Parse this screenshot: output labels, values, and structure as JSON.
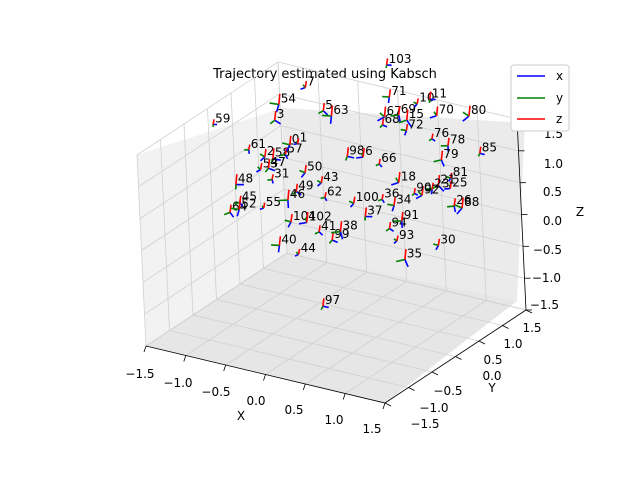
{
  "chart_data": {
    "type": "scatter",
    "title": "Trajectory estimated using Kabsch",
    "xlabel": "X",
    "ylabel": "Y",
    "zlabel": "Z",
    "x_ticks": [
      "−1.5",
      "−1.0",
      "−0.5",
      "0.0",
      "0.5",
      "1.0",
      "1.5"
    ],
    "y_ticks": [
      "−1.5",
      "−1.0",
      "−0.5",
      "0.0",
      "0.5",
      "1.0",
      "1.5"
    ],
    "z_ticks": [
      "−1.5",
      "−1.0",
      "−0.5",
      "0.0",
      "0.5",
      "1.0",
      "1.5"
    ],
    "xlim": [
      -1.5,
      1.5
    ],
    "ylim": [
      -1.5,
      1.5
    ],
    "zlim": [
      -1.5,
      1.5
    ],
    "grid": true,
    "legend_position": "top-right",
    "legend": [
      {
        "name": "x",
        "color": "#0000ff"
      },
      {
        "name": "y",
        "color": "#008000"
      },
      {
        "name": "z",
        "color": "#ff0000"
      }
    ],
    "poses": [
      {
        "label": "59",
        "x": -1.5,
        "y": 0.1,
        "z": 1.2
      },
      {
        "label": "64",
        "x": -1.4,
        "y": 0.2,
        "z": -0.2
      },
      {
        "label": "54",
        "x": -0.9,
        "y": 0.5,
        "z": 1.5
      },
      {
        "label": "7",
        "x": -0.8,
        "y": 0.9,
        "z": 1.6
      },
      {
        "label": "3",
        "x": -0.9,
        "y": 0.4,
        "z": 1.3
      },
      {
        "label": "61",
        "x": -1.0,
        "y": 0.0,
        "z": 1.0
      },
      {
        "label": "2",
        "x": -0.8,
        "y": 0.0,
        "z": 0.95
      },
      {
        "label": "58",
        "x": -0.7,
        "y": 0.0,
        "z": 0.95
      },
      {
        "label": "57",
        "x": -0.6,
        "y": 0.1,
        "z": 1.0
      },
      {
        "label": "0",
        "x": -0.6,
        "y": 0.2,
        "z": 1.1
      },
      {
        "label": "1",
        "x": -0.5,
        "y": 0.2,
        "z": 1.15
      },
      {
        "label": "5",
        "x": -0.4,
        "y": 0.6,
        "z": 1.5
      },
      {
        "label": "63",
        "x": -0.3,
        "y": 0.6,
        "z": 1.45
      },
      {
        "label": "53",
        "x": -0.8,
        "y": -0.1,
        "z": 0.8
      },
      {
        "label": "47",
        "x": -0.7,
        "y": -0.1,
        "z": 0.85
      },
      {
        "label": "31",
        "x": -0.6,
        "y": -0.2,
        "z": 0.75
      },
      {
        "label": "50",
        "x": -0.3,
        "y": 0.0,
        "z": 0.85
      },
      {
        "label": "48",
        "x": -1.0,
        "y": -0.3,
        "z": 0.6
      },
      {
        "label": "45",
        "x": -0.9,
        "y": -0.4,
        "z": 0.4
      },
      {
        "label": "52",
        "x": -0.85,
        "y": -0.5,
        "z": 0.35
      },
      {
        "label": "55",
        "x": -0.6,
        "y": -0.4,
        "z": 0.4
      },
      {
        "label": "49",
        "x": -0.3,
        "y": -0.2,
        "z": 0.65
      },
      {
        "label": "46",
        "x": -0.35,
        "y": -0.3,
        "z": 0.55
      },
      {
        "label": "43",
        "x": -0.1,
        "y": 0.0,
        "z": 0.75
      },
      {
        "label": "98",
        "x": 0.0,
        "y": 0.4,
        "z": 1.0
      },
      {
        "label": "62",
        "x": 0.0,
        "y": -0.1,
        "z": 0.6
      },
      {
        "label": "104",
        "x": -0.2,
        "y": -0.5,
        "z": 0.35
      },
      {
        "label": "102",
        "x": 0.0,
        "y": -0.5,
        "z": 0.4
      },
      {
        "label": "41",
        "x": 0.15,
        "y": -0.5,
        "z": 0.3
      },
      {
        "label": "40",
        "x": -0.3,
        "y": -0.6,
        "z": 0.0
      },
      {
        "label": "44",
        "x": 0.0,
        "y": -0.7,
        "z": 0.0
      },
      {
        "label": "99",
        "x": 0.25,
        "y": -0.4,
        "z": 0.15
      },
      {
        "label": "38",
        "x": 0.3,
        "y": -0.3,
        "z": 0.25
      },
      {
        "label": "100",
        "x": 0.3,
        "y": 0.0,
        "z": 0.55
      },
      {
        "label": "37",
        "x": 0.5,
        "y": -0.1,
        "z": 0.45
      },
      {
        "label": "36",
        "x": 0.6,
        "y": 0.1,
        "z": 0.65
      },
      {
        "label": "34",
        "x": 0.75,
        "y": 0.1,
        "z": 0.6
      },
      {
        "label": "18",
        "x": 0.7,
        "y": 0.3,
        "z": 0.85
      },
      {
        "label": "94",
        "x": 0.8,
        "y": -0.1,
        "z": 0.35
      },
      {
        "label": "91",
        "x": 0.9,
        "y": 0.0,
        "z": 0.45
      },
      {
        "label": "93",
        "x": 0.95,
        "y": -0.2,
        "z": 0.25
      },
      {
        "label": "97",
        "x": 0.4,
        "y": -0.9,
        "z": -0.6
      },
      {
        "label": "35",
        "x": 1.1,
        "y": -0.3,
        "z": 0.05
      },
      {
        "label": "30",
        "x": 1.35,
        "y": 0.0,
        "z": 0.2
      },
      {
        "label": "6",
        "x": 0.2,
        "y": 0.4,
        "z": 1.05
      },
      {
        "label": "66",
        "x": 0.4,
        "y": 0.4,
        "z": 1.0
      },
      {
        "label": "71",
        "x": 0.2,
        "y": 1.0,
        "z": 1.7
      },
      {
        "label": "67",
        "x": 0.25,
        "y": 0.8,
        "z": 1.5
      },
      {
        "label": "68",
        "x": 0.25,
        "y": 0.75,
        "z": 1.4
      },
      {
        "label": "69",
        "x": 0.4,
        "y": 0.85,
        "z": 1.55
      },
      {
        "label": "10",
        "x": 0.55,
        "y": 1.0,
        "z": 1.7
      },
      {
        "label": "11",
        "x": 0.65,
        "y": 1.1,
        "z": 1.75
      },
      {
        "label": "15",
        "x": 0.5,
        "y": 0.85,
        "z": 1.5
      },
      {
        "label": "72",
        "x": 0.55,
        "y": 0.75,
        "z": 1.4
      },
      {
        "label": "70",
        "x": 0.85,
        "y": 0.9,
        "z": 1.65
      },
      {
        "label": "76",
        "x": 0.9,
        "y": 0.7,
        "z": 1.4
      },
      {
        "label": "78",
        "x": 1.1,
        "y": 0.7,
        "z": 1.35
      },
      {
        "label": "80",
        "x": 1.2,
        "y": 1.0,
        "z": 1.7
      },
      {
        "label": "85",
        "x": 1.5,
        "y": 0.7,
        "z": 1.35
      },
      {
        "label": "79",
        "x": 1.1,
        "y": 0.55,
        "z": 1.2
      },
      {
        "label": "81",
        "x": 1.3,
        "y": 0.4,
        "z": 1.05
      },
      {
        "label": "25",
        "x": 1.35,
        "y": 0.3,
        "z": 0.95
      },
      {
        "label": "21",
        "x": 1.2,
        "y": 0.3,
        "z": 0.95
      },
      {
        "label": "23",
        "x": 1.15,
        "y": 0.25,
        "z": 0.9
      },
      {
        "label": "92",
        "x": 1.05,
        "y": 0.2,
        "z": 0.8
      },
      {
        "label": "90",
        "x": 0.95,
        "y": 0.2,
        "z": 0.8
      },
      {
        "label": "26",
        "x": 1.45,
        "y": 0.2,
        "z": 0.75
      },
      {
        "label": "88",
        "x": 1.55,
        "y": 0.2,
        "z": 0.75
      },
      {
        "label": "103",
        "x": 0.0,
        "y": 1.3,
        "z": 2.0
      }
    ]
  }
}
